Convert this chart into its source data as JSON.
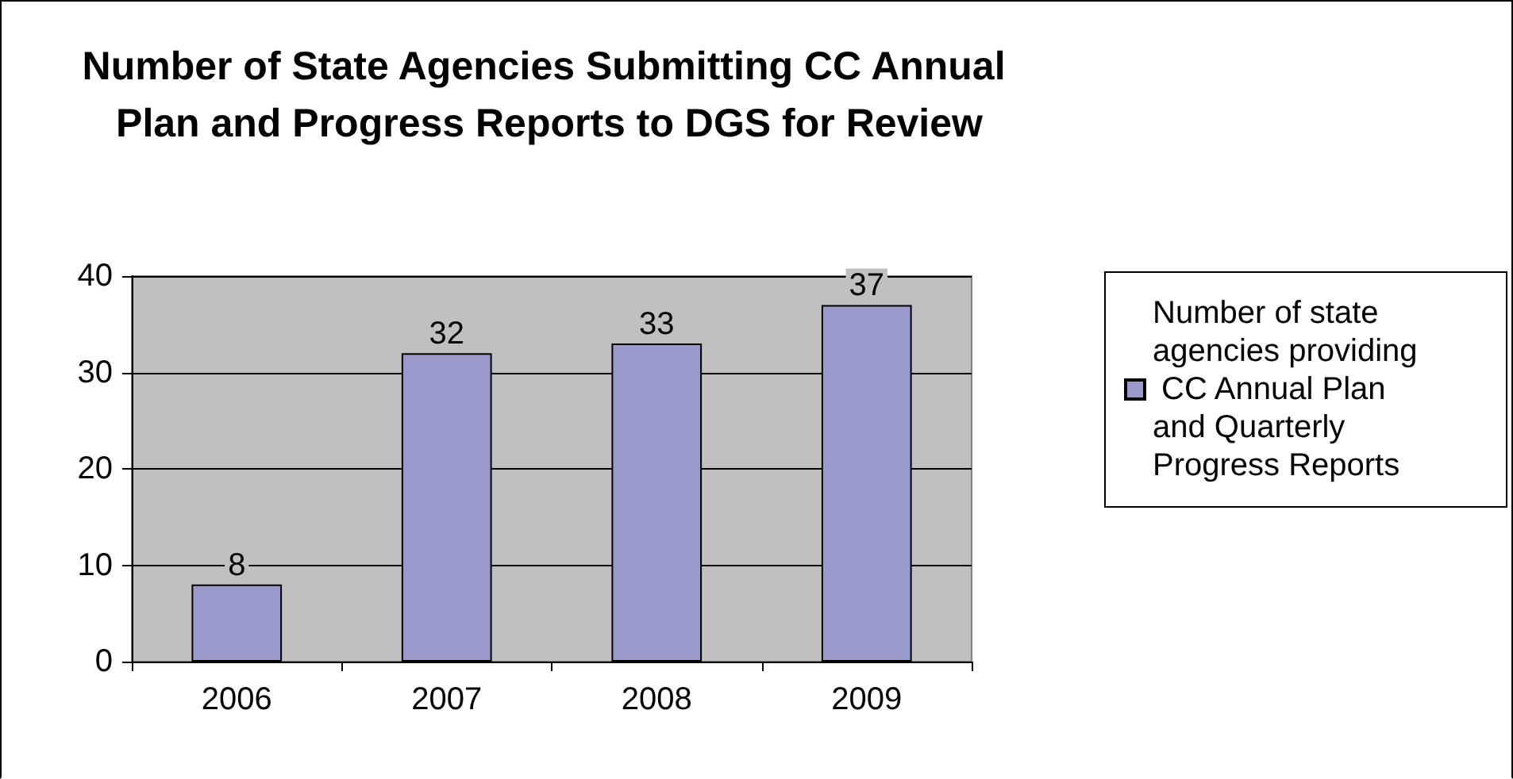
{
  "chart_data": {
    "type": "bar",
    "title": "Number of State Agencies Submitting CC Annual Plan and Progress Reports to DGS for Review",
    "categories": [
      "2006",
      "2007",
      "2008",
      "2009"
    ],
    "series": [
      {
        "name": "Number of state agencies providing CC Annual Plan and Quarterly Progress Reports",
        "color": "#9999cc",
        "values": [
          8,
          32,
          33,
          37
        ]
      }
    ],
    "ylim": [
      0,
      40
    ],
    "yticks": [
      0,
      10,
      20,
      30,
      40
    ],
    "grid": "y",
    "legend": "right",
    "data_labels": true
  }
}
